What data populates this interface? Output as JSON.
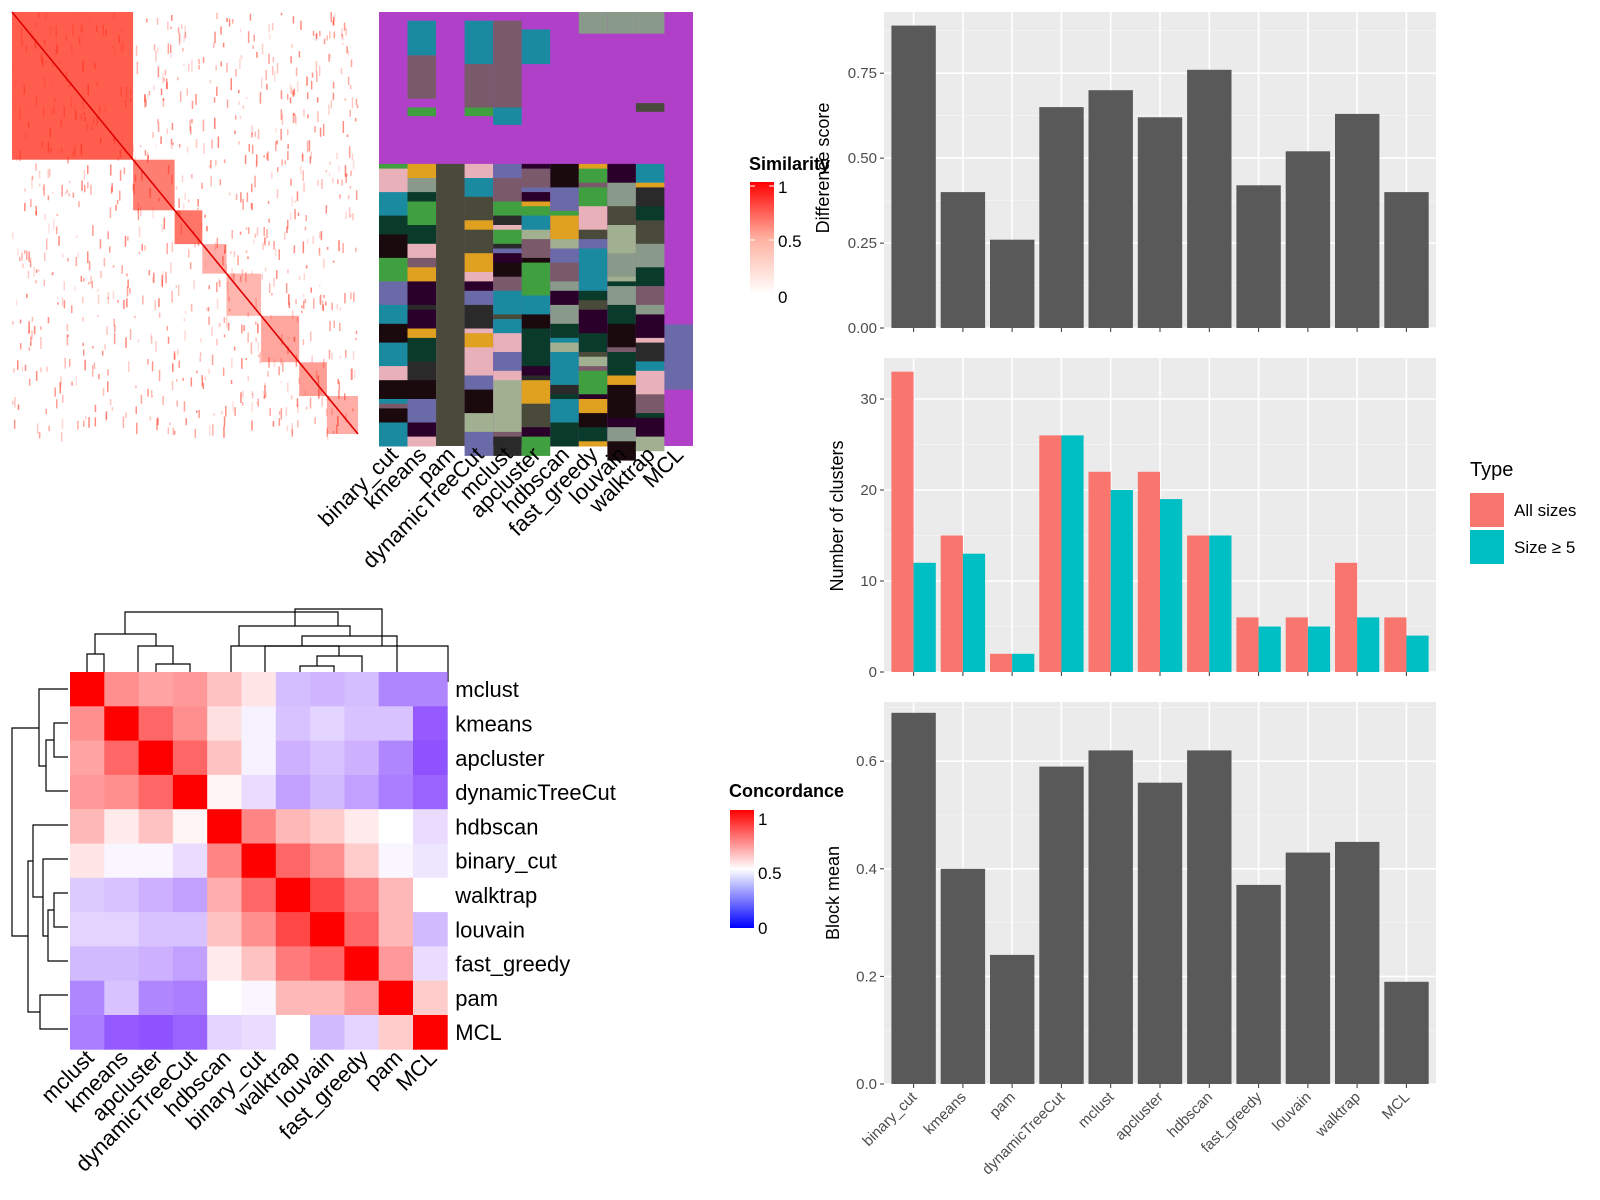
{
  "colors": {
    "panel_bg": "#ebebeb",
    "bar_dark": "#595959",
    "all_sizes": "#f8766d",
    "size5": "#00bfc4",
    "red": "#ff0000",
    "blue": "#0000ff",
    "purple": "#b040c8"
  },
  "chart_data": [
    {
      "type": "heatmap",
      "name": "similarity-heatmap",
      "legend_title": "Similarity",
      "legend_ticks": [
        "1",
        "0.5",
        "0"
      ]
    },
    {
      "type": "heatmap",
      "name": "cluster-assignment-heatmap",
      "columns": [
        "binary_cut",
        "kmeans",
        "pam",
        "dynamicTreeCut",
        "mclust",
        "apcluster",
        "hdbscan",
        "fast_greedy",
        "louvain",
        "walktrap",
        "MCL"
      ]
    },
    {
      "type": "heatmap",
      "name": "concordance-heatmap",
      "legend_title": "Concordance",
      "legend_ticks": [
        "1",
        "0.5",
        "0"
      ],
      "rows": [
        "mclust",
        "kmeans",
        "apcluster",
        "dynamicTreeCut",
        "hdbscan",
        "binary_cut",
        "walktrap",
        "louvain",
        "fast_greedy",
        "pam",
        "MCL"
      ],
      "cols": [
        "mclust",
        "kmeans",
        "apcluster",
        "dynamicTreeCut",
        "hdbscan",
        "binary_cut",
        "walktrap",
        "louvain",
        "fast_greedy",
        "pam",
        "MCL"
      ],
      "values": [
        [
          1.0,
          0.72,
          0.68,
          0.7,
          0.62,
          0.55,
          0.35,
          0.33,
          0.35,
          0.22,
          0.22
        ],
        [
          0.72,
          1.0,
          0.8,
          0.72,
          0.56,
          0.47,
          0.36,
          0.4,
          0.36,
          0.36,
          0.12
        ],
        [
          0.68,
          0.8,
          1.0,
          0.8,
          0.62,
          0.47,
          0.32,
          0.36,
          0.32,
          0.22,
          0.1
        ],
        [
          0.7,
          0.72,
          0.8,
          1.0,
          0.52,
          0.42,
          0.28,
          0.34,
          0.28,
          0.2,
          0.14
        ],
        [
          0.64,
          0.54,
          0.62,
          0.52,
          1.0,
          0.74,
          0.64,
          0.6,
          0.54,
          0.5,
          0.42
        ],
        [
          0.55,
          0.48,
          0.48,
          0.42,
          0.74,
          1.0,
          0.8,
          0.72,
          0.6,
          0.48,
          0.44
        ],
        [
          0.38,
          0.36,
          0.32,
          0.28,
          0.66,
          0.8,
          1.0,
          0.86,
          0.76,
          0.64,
          0.5
        ],
        [
          0.4,
          0.4,
          0.36,
          0.36,
          0.62,
          0.72,
          0.86,
          1.0,
          0.8,
          0.64,
          0.34
        ],
        [
          0.34,
          0.34,
          0.32,
          0.28,
          0.54,
          0.62,
          0.76,
          0.8,
          1.0,
          0.7,
          0.42
        ],
        [
          0.22,
          0.36,
          0.22,
          0.2,
          0.5,
          0.48,
          0.64,
          0.64,
          0.7,
          1.0,
          0.6
        ],
        [
          0.2,
          0.12,
          0.1,
          0.14,
          0.4,
          0.42,
          0.5,
          0.34,
          0.4,
          0.6,
          1.0
        ]
      ]
    },
    {
      "type": "bar",
      "name": "difference-score",
      "categories": [
        "binary_cut",
        "kmeans",
        "pam",
        "dynamicTreeCut",
        "mclust",
        "apcluster",
        "hdbscan",
        "fast_greedy",
        "louvain",
        "walktrap",
        "MCL"
      ],
      "values": [
        0.89,
        0.4,
        0.26,
        0.65,
        0.7,
        0.62,
        0.76,
        0.42,
        0.52,
        0.63,
        0.4
      ],
      "ylabel": "Difference score",
      "ylim": [
        0,
        0.93
      ],
      "yticks": [
        0,
        0.25,
        0.5,
        0.75
      ],
      "ytick_labels": [
        "0.00",
        "0.25",
        "0.50",
        "0.75"
      ]
    },
    {
      "type": "bar",
      "name": "number-of-clusters",
      "categories": [
        "binary_cut",
        "kmeans",
        "pam",
        "dynamicTreeCut",
        "mclust",
        "apcluster",
        "hdbscan",
        "fast_greedy",
        "louvain",
        "walktrap",
        "MCL"
      ],
      "series": [
        {
          "name": "All sizes",
          "values": [
            33,
            15,
            2,
            26,
            22,
            22,
            15,
            6,
            6,
            12,
            6
          ]
        },
        {
          "name": "Size ≥ 5",
          "values": [
            12,
            13,
            2,
            26,
            20,
            19,
            15,
            5,
            5,
            6,
            4
          ]
        }
      ],
      "ylabel": "Number of clusters",
      "ylim": [
        0,
        34.5
      ],
      "yticks": [
        0,
        10,
        20,
        30
      ],
      "ytick_labels": [
        "0",
        "10",
        "20",
        "30"
      ],
      "legend_title": "Type",
      "legend_placement": "right"
    },
    {
      "type": "bar",
      "name": "block-mean",
      "categories": [
        "binary_cut",
        "kmeans",
        "pam",
        "dynamicTreeCut",
        "mclust",
        "apcluster",
        "hdbscan",
        "fast_greedy",
        "louvain",
        "walktrap",
        "MCL"
      ],
      "values": [
        0.69,
        0.4,
        0.24,
        0.59,
        0.62,
        0.56,
        0.62,
        0.37,
        0.43,
        0.45,
        0.19
      ],
      "ylabel": "Block mean",
      "ylim": [
        0,
        0.71
      ],
      "yticks": [
        0,
        0.2,
        0.4,
        0.6
      ],
      "ytick_labels": [
        "0.0",
        "0.2",
        "0.4",
        "0.6"
      ]
    }
  ]
}
